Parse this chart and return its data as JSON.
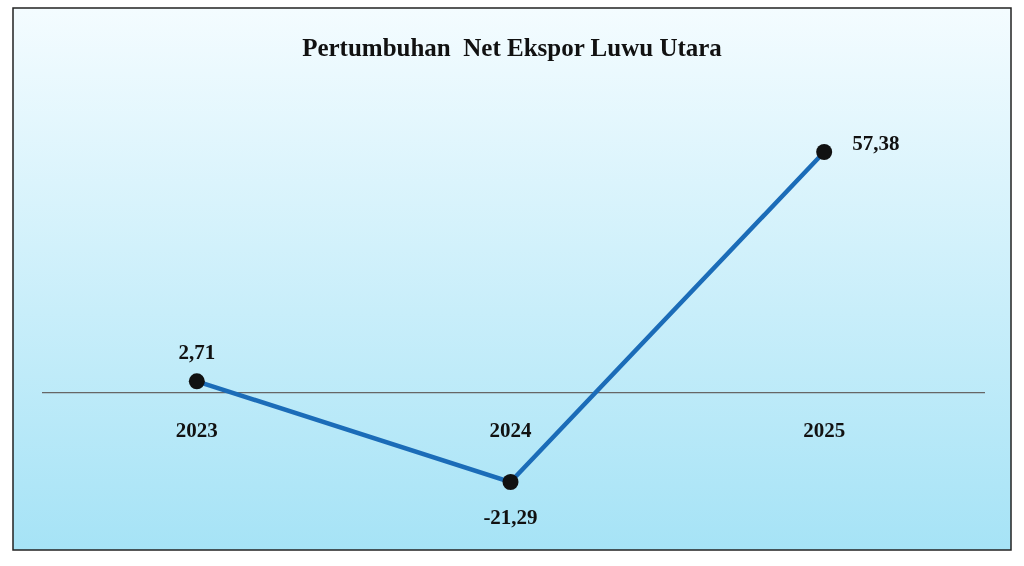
{
  "chart_data": {
    "type": "line",
    "title": "Pertumbuhan  Net Ekspor Luwu Utara",
    "categories": [
      "2023",
      "2024",
      "2025"
    ],
    "series": [
      {
        "color": "#1b6cb8",
        "values": [
          2.71,
          -21.29,
          57.38
        ],
        "value_labels": [
          "2,71",
          "-21,29",
          "57,38"
        ]
      }
    ],
    "marker": "circle",
    "line_style": "solid"
  }
}
